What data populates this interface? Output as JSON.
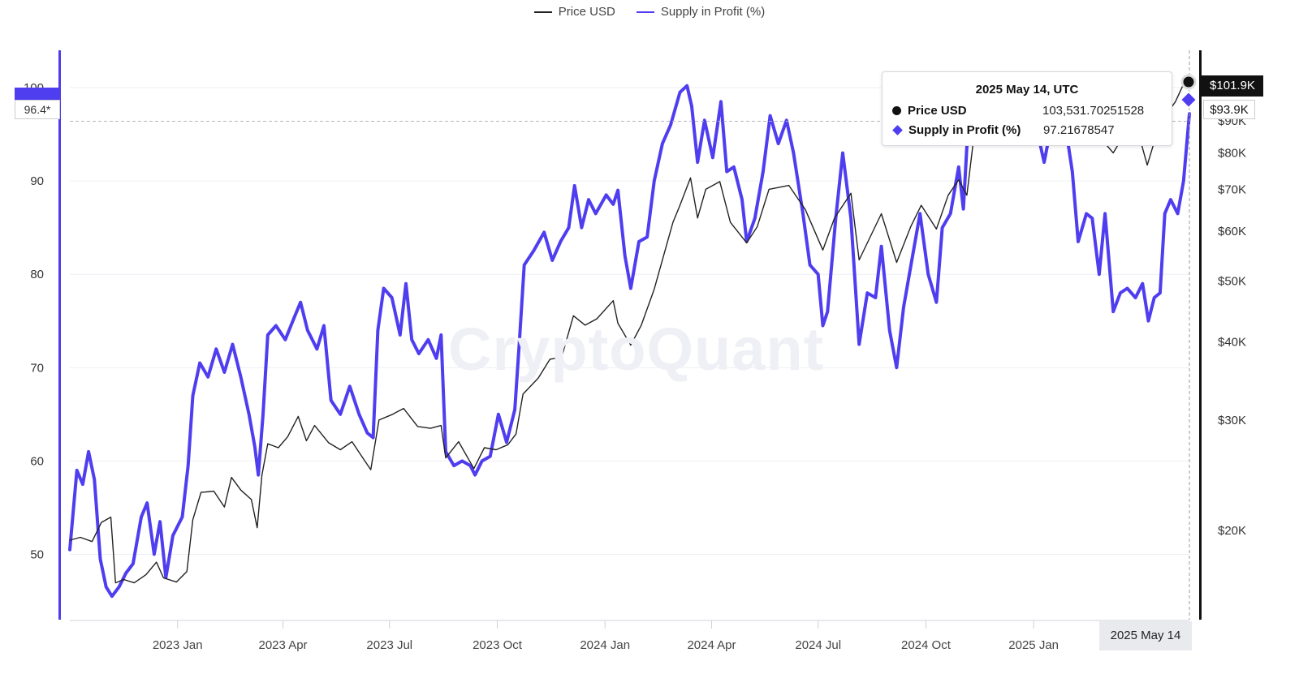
{
  "legend": [
    {
      "name": "Price USD",
      "color": "#222222"
    },
    {
      "name": "Supply in Profit (%)",
      "color": "#4f3df0"
    }
  ],
  "watermark": "CryptoQuant",
  "tooltip": {
    "title": "2025 May 14, UTC",
    "rows": [
      {
        "name": "Price USD",
        "value": "103,531.70251528",
        "marker": "circle",
        "color": "#111111"
      },
      {
        "name": "Supply in Profit (%)",
        "value": "97.21678547",
        "marker": "diamond",
        "color": "#4f3df0"
      }
    ]
  },
  "crosshair": {
    "price_label": "$101.9K",
    "supply_label": "$93.9K",
    "left_label": "96.4*",
    "date_label": "2025 May 14"
  },
  "chart_data": {
    "type": "line",
    "x_tick_labels": [
      "2023 Jan",
      "2023 Apr",
      "2023 Jul",
      "2023 Oct",
      "2024 Jan",
      "2024 Apr",
      "2024 Jul",
      "2024 Oct",
      "2025 Jan"
    ],
    "left_axis": {
      "ticks": [
        50,
        60,
        70,
        80,
        90,
        100
      ],
      "range": [
        43,
        104
      ]
    },
    "right_axis": {
      "scale": "log",
      "tick_labels": [
        "$20K",
        "$30K",
        "$40K",
        "$50K",
        "$60K",
        "$70K",
        "$80K",
        "$90K"
      ],
      "tick_values": [
        20000,
        30000,
        40000,
        50000,
        60000,
        70000,
        80000,
        90000
      ]
    },
    "grid": "horizontal",
    "legend_position": "top-center",
    "series": [
      {
        "name": "Supply in Profit (%)",
        "axis": "left",
        "color": "#4f3df0",
        "points": [
          [
            "2022-10-01",
            50.5
          ],
          [
            "2022-10-07",
            59.0
          ],
          [
            "2022-10-12",
            57.5
          ],
          [
            "2022-10-17",
            61.0
          ],
          [
            "2022-10-22",
            58.0
          ],
          [
            "2022-10-27",
            49.5
          ],
          [
            "2022-11-01",
            46.5
          ],
          [
            "2022-11-06",
            45.5
          ],
          [
            "2022-11-12",
            46.5
          ],
          [
            "2022-11-18",
            48.0
          ],
          [
            "2022-11-24",
            49.0
          ],
          [
            "2022-12-01",
            54.0
          ],
          [
            "2022-12-06",
            55.5
          ],
          [
            "2022-12-12",
            50.0
          ],
          [
            "2022-12-17",
            53.5
          ],
          [
            "2022-12-22",
            47.5
          ],
          [
            "2022-12-28",
            52.0
          ],
          [
            "2023-01-05",
            54.0
          ],
          [
            "2023-01-10",
            59.5
          ],
          [
            "2023-01-14",
            67.0
          ],
          [
            "2023-01-20",
            70.5
          ],
          [
            "2023-01-27",
            69.0
          ],
          [
            "2023-02-03",
            72.0
          ],
          [
            "2023-02-10",
            69.5
          ],
          [
            "2023-02-17",
            72.5
          ],
          [
            "2023-02-24",
            69.0
          ],
          [
            "2023-03-03",
            65.0
          ],
          [
            "2023-03-08",
            61.5
          ],
          [
            "2023-03-11",
            58.5
          ],
          [
            "2023-03-15",
            65.0
          ],
          [
            "2023-03-19",
            73.5
          ],
          [
            "2023-03-26",
            74.5
          ],
          [
            "2023-04-03",
            73.0
          ],
          [
            "2023-04-11",
            75.5
          ],
          [
            "2023-04-16",
            77.0
          ],
          [
            "2023-04-22",
            74.0
          ],
          [
            "2023-04-30",
            72.0
          ],
          [
            "2023-05-06",
            74.5
          ],
          [
            "2023-05-12",
            66.5
          ],
          [
            "2023-05-20",
            65.0
          ],
          [
            "2023-05-28",
            68.0
          ],
          [
            "2023-06-05",
            65.0
          ],
          [
            "2023-06-12",
            63.0
          ],
          [
            "2023-06-17",
            62.5
          ],
          [
            "2023-06-21",
            74.0
          ],
          [
            "2023-06-26",
            78.5
          ],
          [
            "2023-07-03",
            77.5
          ],
          [
            "2023-07-10",
            73.5
          ],
          [
            "2023-07-15",
            79.0
          ],
          [
            "2023-07-20",
            73.0
          ],
          [
            "2023-07-26",
            71.5
          ],
          [
            "2023-08-03",
            73.0
          ],
          [
            "2023-08-10",
            71.0
          ],
          [
            "2023-08-14",
            73.5
          ],
          [
            "2023-08-18",
            61.0
          ],
          [
            "2023-08-25",
            59.5
          ],
          [
            "2023-09-01",
            60.0
          ],
          [
            "2023-09-08",
            59.5
          ],
          [
            "2023-09-12",
            58.5
          ],
          [
            "2023-09-18",
            60.0
          ],
          [
            "2023-09-25",
            60.5
          ],
          [
            "2023-10-02",
            65.0
          ],
          [
            "2023-10-09",
            62.0
          ],
          [
            "2023-10-16",
            65.5
          ],
          [
            "2023-10-20",
            73.0
          ],
          [
            "2023-10-24",
            81.0
          ],
          [
            "2023-11-01",
            82.5
          ],
          [
            "2023-11-10",
            84.5
          ],
          [
            "2023-11-17",
            81.5
          ],
          [
            "2023-11-24",
            83.5
          ],
          [
            "2023-12-01",
            85.0
          ],
          [
            "2023-12-06",
            89.5
          ],
          [
            "2023-12-12",
            85.0
          ],
          [
            "2023-12-18",
            88.0
          ],
          [
            "2023-12-24",
            86.5
          ],
          [
            "2024-01-02",
            88.5
          ],
          [
            "2024-01-08",
            87.5
          ],
          [
            "2024-01-12",
            89.0
          ],
          [
            "2024-01-18",
            82.0
          ],
          [
            "2024-01-23",
            78.5
          ],
          [
            "2024-01-30",
            83.5
          ],
          [
            "2024-02-06",
            84.0
          ],
          [
            "2024-02-12",
            90.0
          ],
          [
            "2024-02-19",
            94.0
          ],
          [
            "2024-02-26",
            96.0
          ],
          [
            "2024-03-05",
            99.5
          ],
          [
            "2024-03-11",
            100.2
          ],
          [
            "2024-03-15",
            98.0
          ],
          [
            "2024-03-20",
            92.0
          ],
          [
            "2024-03-26",
            96.5
          ],
          [
            "2024-04-02",
            92.5
          ],
          [
            "2024-04-09",
            98.5
          ],
          [
            "2024-04-14",
            91.0
          ],
          [
            "2024-04-20",
            91.5
          ],
          [
            "2024-04-27",
            88.0
          ],
          [
            "2024-05-01",
            83.5
          ],
          [
            "2024-05-08",
            86.0
          ],
          [
            "2024-05-15",
            91.0
          ],
          [
            "2024-05-21",
            97.0
          ],
          [
            "2024-05-28",
            94.0
          ],
          [
            "2024-06-04",
            96.5
          ],
          [
            "2024-06-10",
            93.0
          ],
          [
            "2024-06-18",
            86.5
          ],
          [
            "2024-06-24",
            81.0
          ],
          [
            "2024-07-01",
            80.0
          ],
          [
            "2024-07-05",
            74.5
          ],
          [
            "2024-07-09",
            76.0
          ],
          [
            "2024-07-16",
            86.0
          ],
          [
            "2024-07-22",
            93.0
          ],
          [
            "2024-07-29",
            86.0
          ],
          [
            "2024-08-05",
            72.5
          ],
          [
            "2024-08-12",
            78.0
          ],
          [
            "2024-08-19",
            77.5
          ],
          [
            "2024-08-24",
            83.0
          ],
          [
            "2024-08-31",
            74.0
          ],
          [
            "2024-09-06",
            70.0
          ],
          [
            "2024-09-12",
            76.5
          ],
          [
            "2024-09-19",
            81.5
          ],
          [
            "2024-09-26",
            86.5
          ],
          [
            "2024-10-03",
            80.0
          ],
          [
            "2024-10-10",
            77.0
          ],
          [
            "2024-10-15",
            85.0
          ],
          [
            "2024-10-22",
            86.5
          ],
          [
            "2024-10-29",
            91.5
          ],
          [
            "2024-11-02",
            87.0
          ],
          [
            "2024-11-06",
            96.0
          ],
          [
            "2024-11-13",
            99.0
          ],
          [
            "2024-11-22",
            99.5
          ],
          [
            "2024-12-05",
            99.5
          ],
          [
            "2024-12-17",
            99.0
          ],
          [
            "2024-12-25",
            94.0
          ],
          [
            "2025-01-02",
            96.5
          ],
          [
            "2025-01-10",
            92.0
          ],
          [
            "2025-01-20",
            98.5
          ],
          [
            "2025-01-28",
            96.0
          ],
          [
            "2025-02-03",
            91.0
          ],
          [
            "2025-02-08",
            83.5
          ],
          [
            "2025-02-15",
            86.5
          ],
          [
            "2025-02-20",
            86.0
          ],
          [
            "2025-02-26",
            80.0
          ],
          [
            "2025-03-03",
            86.5
          ],
          [
            "2025-03-10",
            76.0
          ],
          [
            "2025-03-16",
            78.0
          ],
          [
            "2025-03-22",
            78.5
          ],
          [
            "2025-03-29",
            77.5
          ],
          [
            "2025-04-04",
            79.0
          ],
          [
            "2025-04-09",
            75.0
          ],
          [
            "2025-04-14",
            77.5
          ],
          [
            "2025-04-19",
            78.0
          ],
          [
            "2025-04-23",
            86.5
          ],
          [
            "2025-04-28",
            88.0
          ],
          [
            "2025-05-04",
            86.5
          ],
          [
            "2025-05-09",
            90.0
          ],
          [
            "2025-05-14",
            97.2
          ]
        ]
      },
      {
        "name": "Price USD",
        "axis": "right",
        "color": "#222222",
        "points": [
          [
            "2022-10-01",
            19300
          ],
          [
            "2022-10-10",
            19500
          ],
          [
            "2022-10-20",
            19200
          ],
          [
            "2022-10-28",
            20600
          ],
          [
            "2022-11-05",
            21000
          ],
          [
            "2022-11-09",
            16500
          ],
          [
            "2022-11-16",
            16700
          ],
          [
            "2022-11-25",
            16500
          ],
          [
            "2022-12-05",
            17000
          ],
          [
            "2022-12-14",
            17800
          ],
          [
            "2022-12-20",
            16800
          ],
          [
            "2022-12-31",
            16550
          ],
          [
            "2023-01-09",
            17200
          ],
          [
            "2023-01-14",
            20800
          ],
          [
            "2023-01-21",
            23000
          ],
          [
            "2023-02-01",
            23100
          ],
          [
            "2023-02-10",
            21800
          ],
          [
            "2023-02-16",
            24300
          ],
          [
            "2023-02-24",
            23200
          ],
          [
            "2023-03-05",
            22400
          ],
          [
            "2023-03-10",
            20200
          ],
          [
            "2023-03-14",
            24500
          ],
          [
            "2023-03-19",
            27500
          ],
          [
            "2023-03-28",
            27100
          ],
          [
            "2023-04-05",
            28200
          ],
          [
            "2023-04-14",
            30400
          ],
          [
            "2023-04-21",
            27800
          ],
          [
            "2023-04-28",
            29400
          ],
          [
            "2023-05-10",
            27600
          ],
          [
            "2023-05-20",
            26900
          ],
          [
            "2023-05-30",
            27700
          ],
          [
            "2023-06-10",
            25800
          ],
          [
            "2023-06-15",
            25000
          ],
          [
            "2023-06-22",
            30000
          ],
          [
            "2023-07-03",
            30600
          ],
          [
            "2023-07-13",
            31300
          ],
          [
            "2023-07-25",
            29300
          ],
          [
            "2023-08-05",
            29100
          ],
          [
            "2023-08-14",
            29400
          ],
          [
            "2023-08-18",
            26100
          ],
          [
            "2023-08-29",
            27700
          ],
          [
            "2023-09-11",
            25100
          ],
          [
            "2023-09-20",
            27100
          ],
          [
            "2023-09-30",
            26900
          ],
          [
            "2023-10-10",
            27400
          ],
          [
            "2023-10-17",
            28500
          ],
          [
            "2023-10-23",
            33000
          ],
          [
            "2023-11-05",
            35000
          ],
          [
            "2023-11-15",
            37500
          ],
          [
            "2023-11-25",
            37800
          ],
          [
            "2023-12-05",
            44000
          ],
          [
            "2023-12-15",
            42500
          ],
          [
            "2023-12-25",
            43500
          ],
          [
            "2024-01-08",
            46500
          ],
          [
            "2024-01-12",
            42800
          ],
          [
            "2024-01-23",
            39500
          ],
          [
            "2024-02-01",
            42500
          ],
          [
            "2024-02-12",
            48500
          ],
          [
            "2024-02-28",
            62000
          ],
          [
            "2024-03-05",
            66000
          ],
          [
            "2024-03-14",
            73000
          ],
          [
            "2024-03-20",
            63000
          ],
          [
            "2024-03-27",
            70000
          ],
          [
            "2024-04-08",
            72000
          ],
          [
            "2024-04-17",
            62000
          ],
          [
            "2024-05-01",
            57500
          ],
          [
            "2024-05-10",
            61000
          ],
          [
            "2024-05-20",
            70000
          ],
          [
            "2024-06-06",
            71000
          ],
          [
            "2024-06-20",
            65000
          ],
          [
            "2024-07-05",
            56000
          ],
          [
            "2024-07-15",
            63000
          ],
          [
            "2024-07-29",
            69000
          ],
          [
            "2024-08-05",
            54000
          ],
          [
            "2024-08-24",
            64000
          ],
          [
            "2024-09-06",
            53500
          ],
          [
            "2024-09-18",
            61000
          ],
          [
            "2024-09-27",
            66000
          ],
          [
            "2024-10-10",
            60500
          ],
          [
            "2024-10-20",
            68500
          ],
          [
            "2024-10-29",
            72500
          ],
          [
            "2024-11-05",
            68500
          ],
          [
            "2024-11-12",
            88000
          ],
          [
            "2024-11-22",
            99000
          ],
          [
            "2024-12-05",
            99000
          ],
          [
            "2024-12-17",
            106000
          ],
          [
            "2024-12-30",
            92500
          ],
          [
            "2025-01-07",
            96000
          ],
          [
            "2025-01-20",
            103000
          ],
          [
            "2025-02-03",
            97000
          ],
          [
            "2025-02-20",
            97000
          ],
          [
            "2025-02-27",
            84500
          ],
          [
            "2025-03-10",
            80000
          ],
          [
            "2025-03-20",
            86000
          ],
          [
            "2025-04-02",
            84000
          ],
          [
            "2025-04-08",
            76500
          ],
          [
            "2025-04-15",
            84500
          ],
          [
            "2025-04-22",
            91000
          ],
          [
            "2025-05-02",
            96500
          ],
          [
            "2025-05-09",
            103000
          ],
          [
            "2025-05-14",
            103500
          ]
        ]
      }
    ]
  }
}
